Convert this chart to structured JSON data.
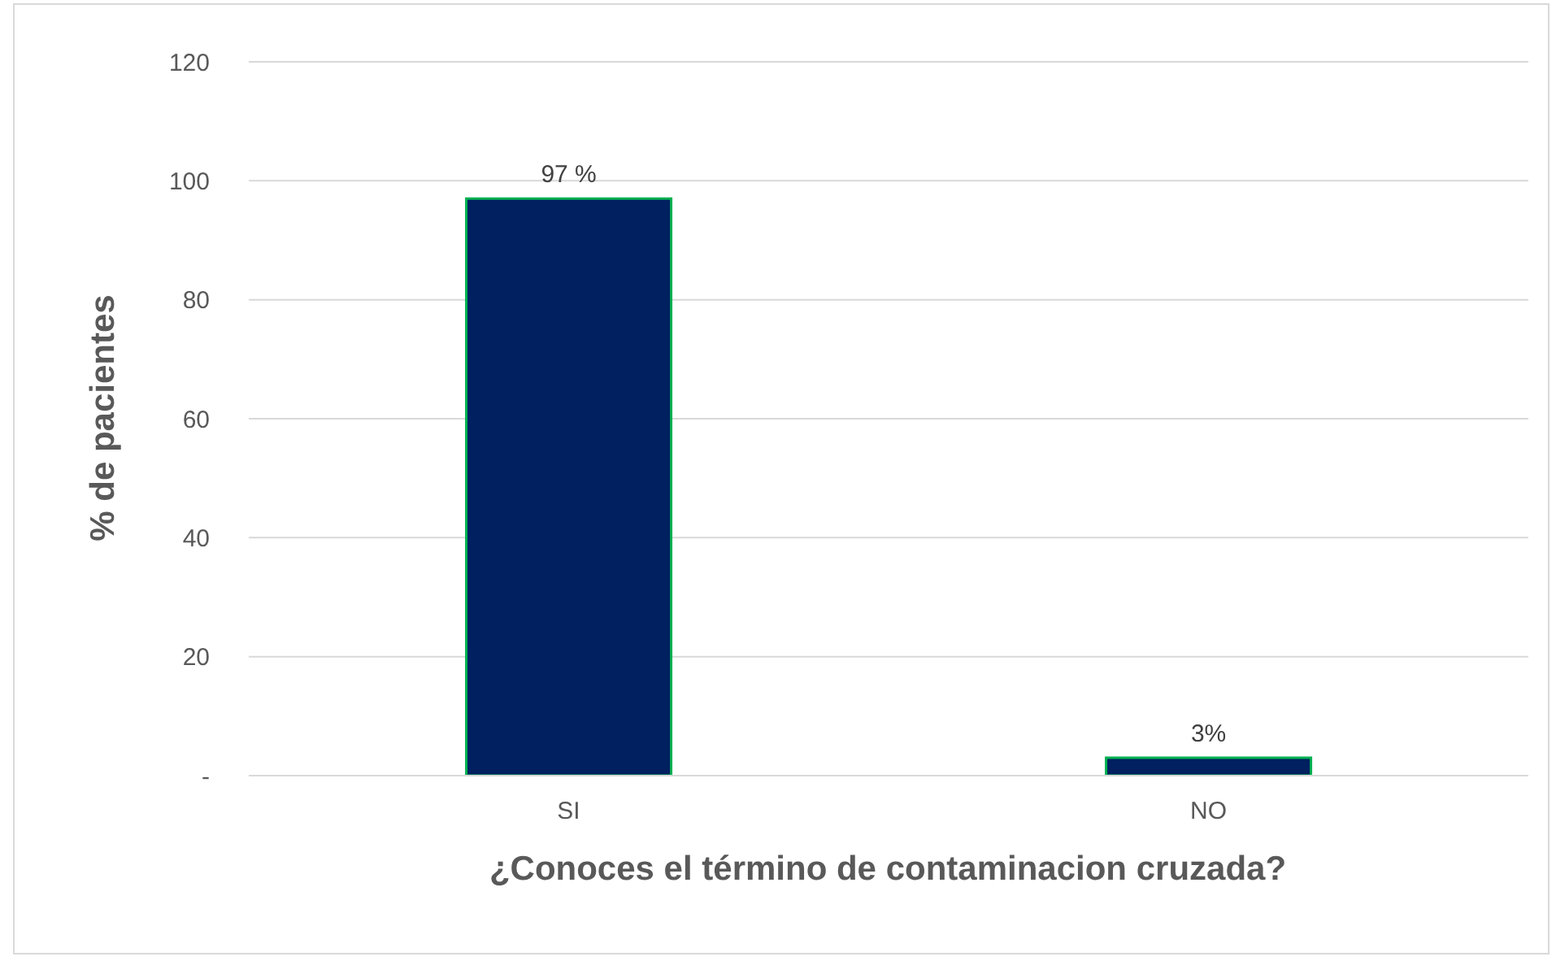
{
  "chart_data": {
    "type": "bar",
    "xlabel": "¿Conoces el término de contaminacion cruzada?",
    "ylabel": "% de pacientes",
    "categories": [
      "SI",
      "NO"
    ],
    "values": [
      97,
      3
    ],
    "color": "#002060",
    "value_labels": [
      "97 %",
      "3%"
    ],
    "ylim": [
      0,
      120
    ],
    "yticks": [
      {
        "value": 0,
        "label": "-"
      },
      20,
      40,
      60,
      80,
      100,
      120
    ],
    "grid": "y"
  }
}
